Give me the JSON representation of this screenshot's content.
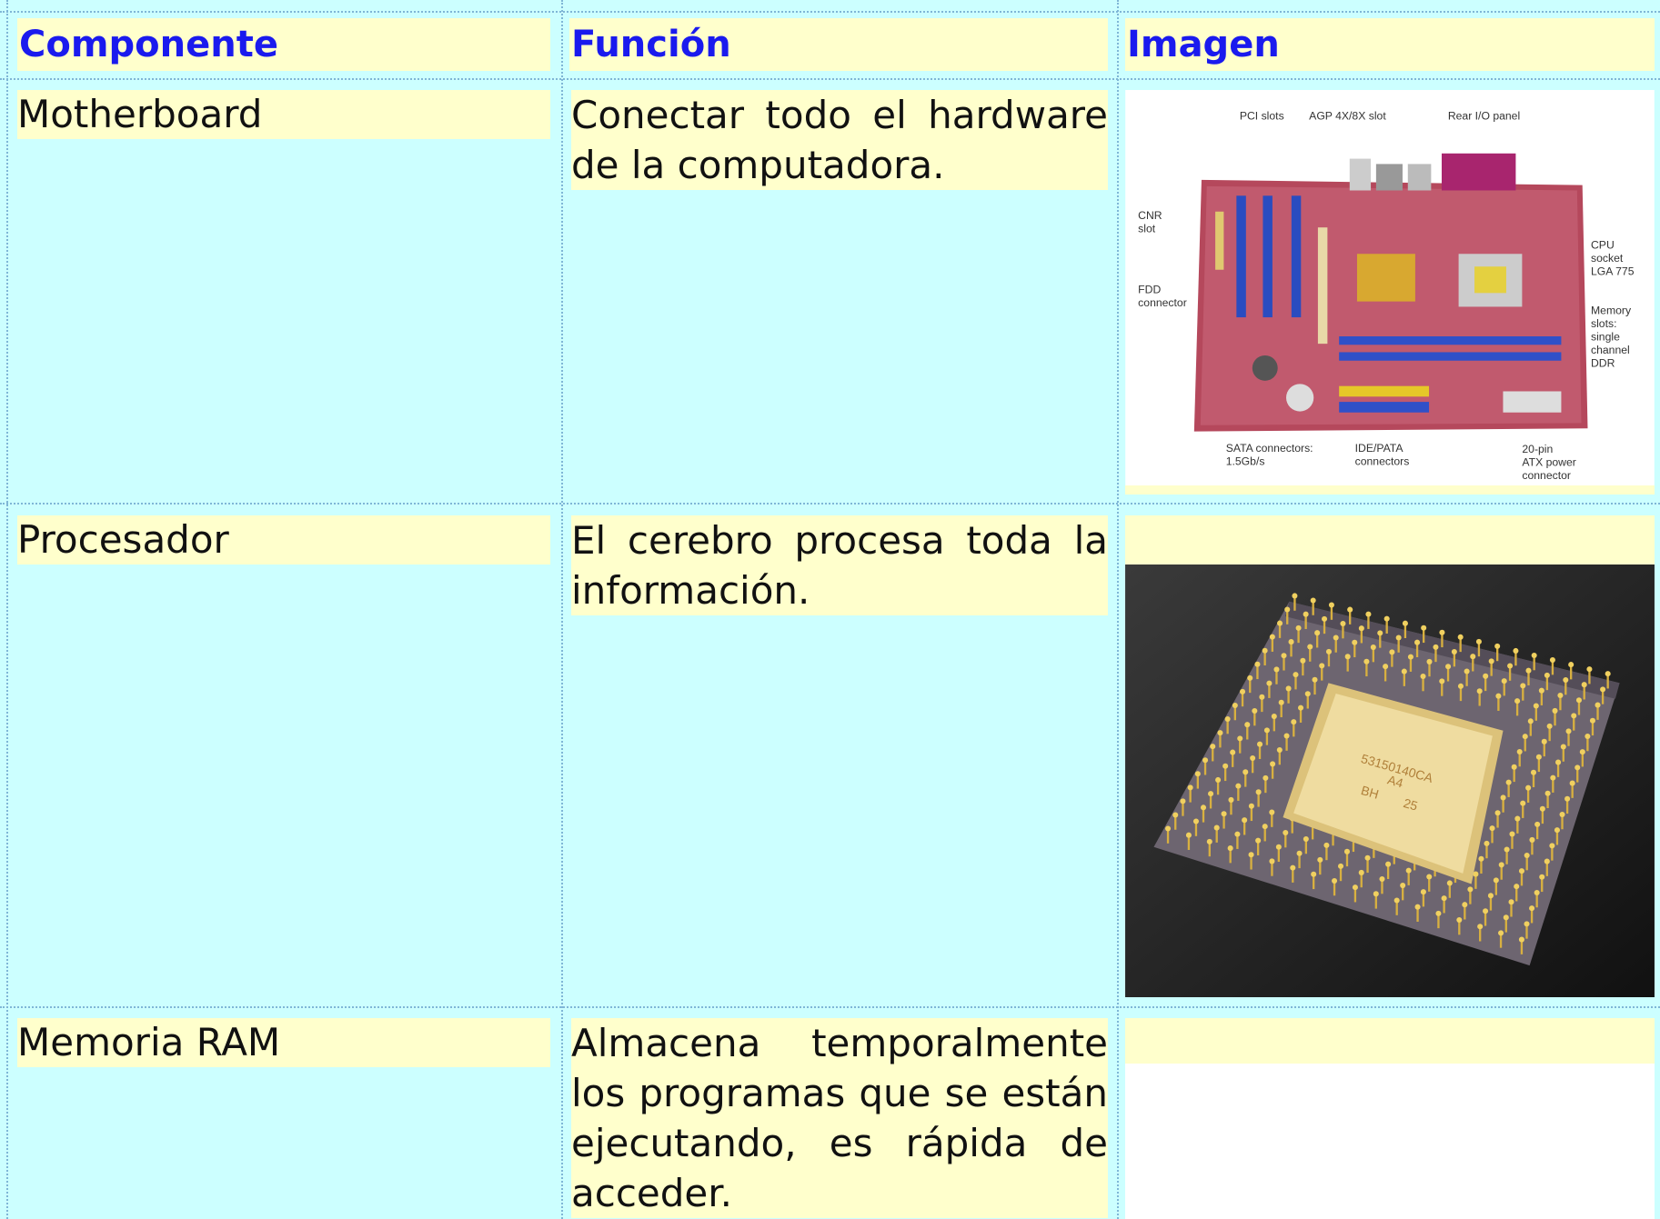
{
  "table": {
    "headers": [
      "Componente",
      "Función",
      "Imagen"
    ],
    "rows": [
      [
        "Motherboard",
        "Conectar todo el hardware de la computadora."
      ],
      [
        "Procesador",
        "El cerebro procesa toda la información."
      ],
      [
        "Memoria RAM",
        "Almacena temporalmente los programas que se están ejecutando, es rápida de acceder."
      ]
    ]
  },
  "images": {
    "motherboard": {
      "labels": [
        [
          "PCI slots"
        ],
        [
          "AGP 4X/8X slot"
        ],
        [
          "Rear I/O panel"
        ],
        [
          "CNR",
          "slot"
        ],
        [
          "FDD",
          "connector"
        ],
        [
          "CPU",
          "socket",
          "LGA 775"
        ],
        [
          "Memory",
          "slots:",
          "single",
          "channel",
          "DDR"
        ],
        [
          "SATA connectors:",
          "1.5Gb/s"
        ],
        [
          "IDE/PATA",
          "connectors"
        ],
        [
          "20-pin",
          "ATX power",
          "connector"
        ]
      ]
    },
    "cpu": {
      "markings": [
        "53150140CA",
        "A4",
        "BH",
        "25"
      ]
    }
  }
}
